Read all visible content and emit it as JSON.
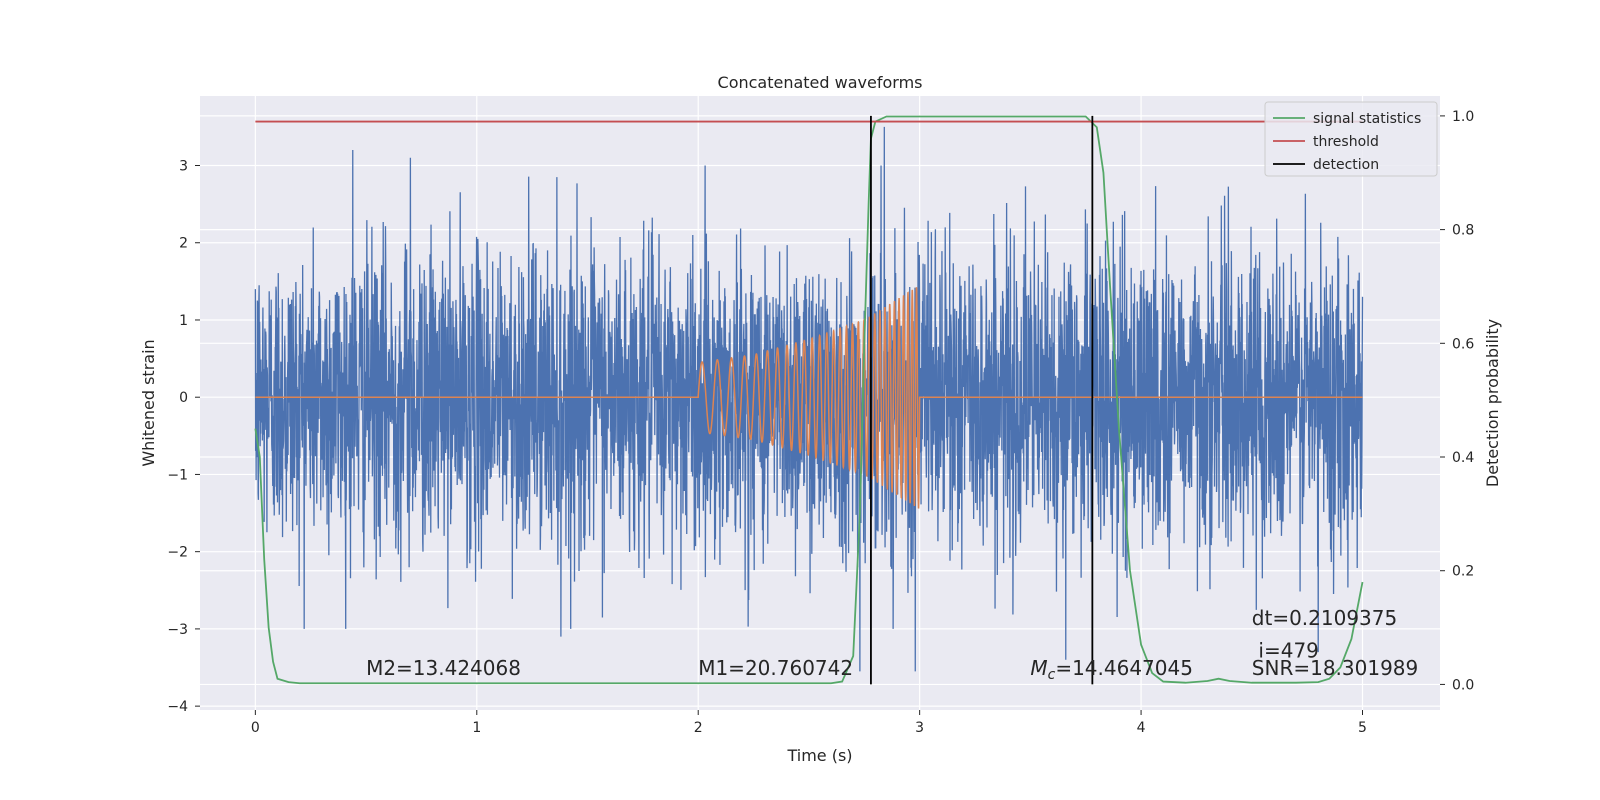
{
  "chart_data": {
    "type": "line",
    "title": "Concatenated waveforms",
    "xlabel": "Time (s)",
    "ylabel": "Whitened strain",
    "y2label": "Detection probability",
    "xlim": [
      -0.25,
      5.35
    ],
    "ylim": [
      -4.05,
      3.9
    ],
    "y2lim": [
      -0.045,
      1.035
    ],
    "xticks": [
      0,
      1,
      2,
      3,
      4,
      5
    ],
    "yticks": [
      -4,
      -3,
      -2,
      -1,
      0,
      1,
      2,
      3
    ],
    "y2ticks": [
      0.0,
      0.2,
      0.4,
      0.6,
      0.8,
      1.0
    ],
    "xtick_labels": [
      "0",
      "1",
      "2",
      "3",
      "4",
      "5"
    ],
    "ytick_labels": [
      "−4",
      "−3",
      "−2",
      "−1",
      "0",
      "1",
      "2",
      "3"
    ],
    "y2tick_labels": [
      "0.0",
      "0.2",
      "0.4",
      "0.6",
      "0.8",
      "1.0"
    ],
    "grid": true,
    "legend_position": "top-right",
    "colors": {
      "strain": "#4c72b0",
      "waveform": "#dd8452",
      "signal_statistics": "#55a868",
      "threshold": "#c44e52",
      "detection": "#000000",
      "background": "#eaeaf2",
      "grid": "#ffffff"
    },
    "series": [
      {
        "name": "",
        "kind": "noise",
        "axis": "left",
        "x_range": [
          0,
          5
        ],
        "typical_amplitude": 1.0,
        "envelope_peaks": [
          [
            0.0,
            1.4
          ],
          [
            0.44,
            3.2
          ],
          [
            0.7,
            3.1
          ],
          [
            1.38,
            -3.1
          ],
          [
            2.73,
            -3.55
          ],
          [
            2.84,
            3.5
          ],
          [
            2.98,
            -3.55
          ],
          [
            3.66,
            -3.4
          ],
          [
            4.8,
            -3.3
          ],
          [
            5.0,
            1.3
          ]
        ]
      },
      {
        "name": "",
        "kind": "chirp",
        "axis": "left",
        "x": [
          0.0,
          2.0,
          2.0,
          2.25,
          2.5,
          2.75,
          3.0,
          3.0,
          5.0
        ],
        "envelope": [
          0.0,
          0.0,
          0.45,
          0.55,
          0.75,
          1.0,
          1.45,
          0.0,
          0.0
        ]
      },
      {
        "name": "signal statistics",
        "axis": "right",
        "x": [
          0.0,
          0.02,
          0.04,
          0.06,
          0.08,
          0.1,
          0.15,
          0.2,
          0.5,
          1.0,
          2.0,
          2.5,
          2.6,
          2.65,
          2.7,
          2.73,
          2.75,
          2.77,
          2.78,
          2.8,
          2.85,
          3.0,
          3.5,
          3.75,
          3.8,
          3.83,
          3.86,
          3.9,
          3.95,
          4.0,
          4.05,
          4.1,
          4.2,
          4.3,
          4.35,
          4.4,
          4.5,
          4.7,
          4.8,
          4.85,
          4.9,
          4.95,
          5.0
        ],
        "values": [
          0.45,
          0.4,
          0.22,
          0.1,
          0.04,
          0.01,
          0.004,
          0.002,
          0.002,
          0.002,
          0.002,
          0.002,
          0.002,
          0.005,
          0.05,
          0.3,
          0.6,
          0.85,
          0.96,
          0.99,
          0.999,
          0.999,
          0.999,
          0.999,
          0.98,
          0.9,
          0.7,
          0.45,
          0.2,
          0.07,
          0.02,
          0.005,
          0.003,
          0.006,
          0.01,
          0.006,
          0.003,
          0.003,
          0.004,
          0.01,
          0.03,
          0.08,
          0.18
        ]
      },
      {
        "name": "threshold",
        "axis": "right",
        "x": [
          0,
          5
        ],
        "values": [
          0.99,
          0.99
        ]
      }
    ],
    "detections": {
      "name": "detection",
      "x": [
        2.78,
        3.78
      ],
      "y_span": [
        0.0,
        1.0
      ]
    },
    "annotations": [
      {
        "text": "M2=13.424068",
        "x": 0.5,
        "y": -3.6
      },
      {
        "text": "M1=20.760742",
        "x": 2.0,
        "y": -3.6
      },
      {
        "text": "=14.4647045",
        "x": 3.5,
        "y": -3.6,
        "prefix_main": "M",
        "prefix_sub": "c"
      },
      {
        "text": "SNR=18.301989",
        "x": 4.5,
        "y": -3.6
      },
      {
        "text": "dt=0.2109375",
        "x": 4.5,
        "y": -2.95
      },
      {
        "text": "i=479",
        "x": 4.53,
        "y": -3.37
      }
    ]
  }
}
